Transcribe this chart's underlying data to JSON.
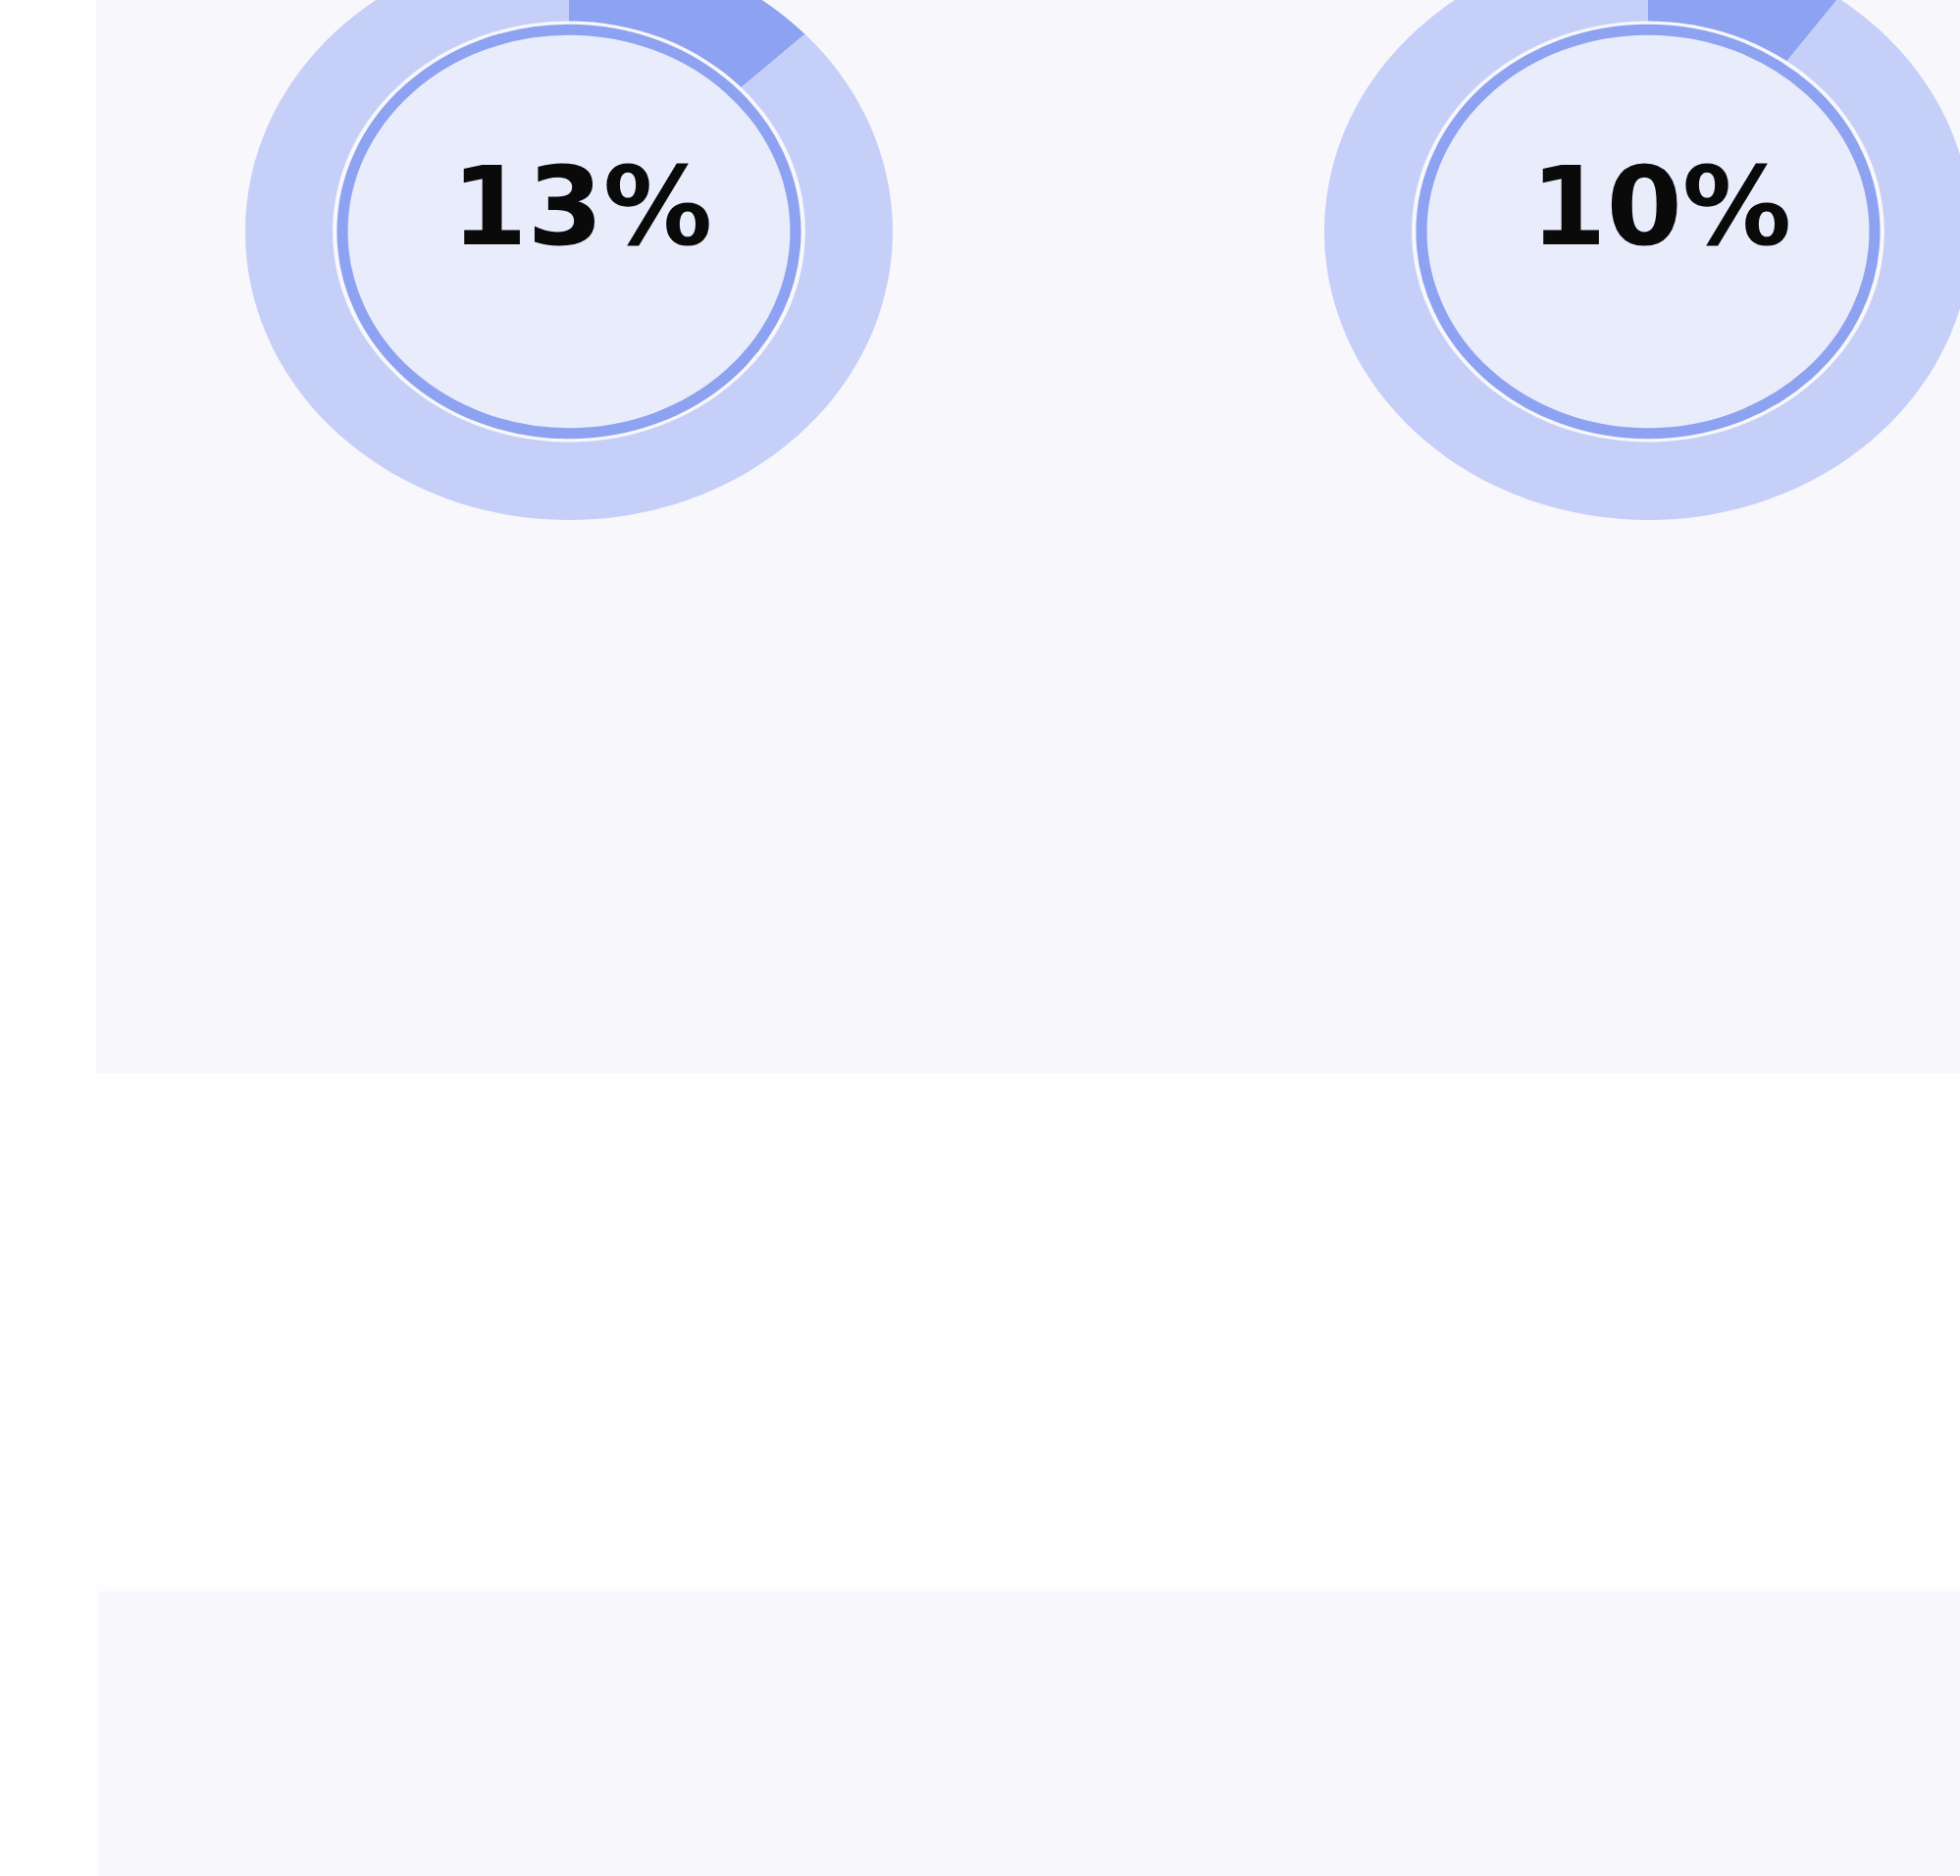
{
  "chart_data": [
    {
      "type": "donut",
      "categories": [
        null,
        null
      ],
      "values": [
        13,
        87
      ],
      "colors": [
        "#8ea2f2",
        "#c5cff8"
      ],
      "value_labels": [
        "13%",
        null
      ]
    },
    {
      "type": "donut",
      "categories": [
        null,
        null
      ],
      "values": [
        10,
        90
      ],
      "colors": [
        "#8ea2f2",
        "#c5cff8"
      ],
      "value_labels": [
        "10%",
        null
      ]
    }
  ]
}
